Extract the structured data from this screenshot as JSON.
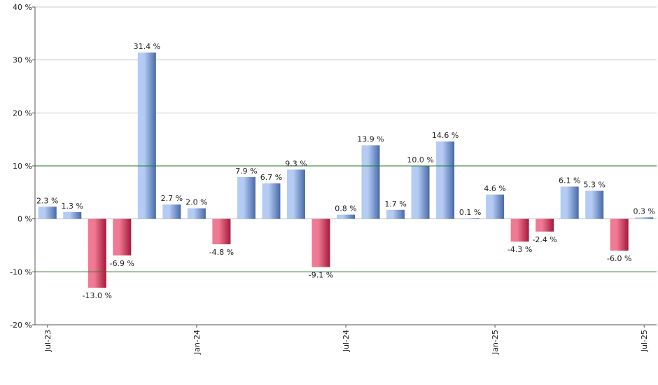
{
  "chart_data": {
    "type": "bar",
    "ylim": [
      -20,
      40
    ],
    "yticks": [
      -20,
      -10,
      0,
      10,
      20,
      30,
      40
    ],
    "ytick_suffix": " %",
    "categories": [
      "2023-07",
      "2023-08",
      "2023-09",
      "2023-10",
      "2023-11",
      "2023-12",
      "2024-01",
      "2024-02",
      "2024-03",
      "2024-04",
      "2024-05",
      "2024-06",
      "2024-07",
      "2024-08",
      "2024-09",
      "2024-10",
      "2024-11",
      "2024-12",
      "2025-01",
      "2025-02",
      "2025-03",
      "2025-04",
      "2025-05",
      "2025-06",
      "2025-07"
    ],
    "values": [
      2.3,
      1.3,
      -13.0,
      -6.9,
      31.4,
      2.7,
      2.0,
      -4.8,
      7.9,
      6.7,
      9.3,
      -9.1,
      0.8,
      13.9,
      1.7,
      10.0,
      14.6,
      0.1,
      4.6,
      -4.3,
      -2.4,
      6.1,
      5.3,
      -6.0,
      0.3
    ],
    "data_labels": [
      "2.3 %",
      "1.3 %",
      "-13.0 %",
      "-6.9 %",
      "31.4 %",
      "2.7 %",
      "2.0 %",
      "-4.8 %",
      "7.9 %",
      "6.7 %",
      "9.3 %",
      "-9.1 %",
      "0.8 %",
      "13.9 %",
      "1.7 %",
      "10.0 %",
      "14.6 %",
      "0.1 %",
      "4.6 %",
      "-4.3 %",
      "-2.4 %",
      "6.1 %",
      "5.3 %",
      "-6.0 %",
      "0.3 %"
    ],
    "xtick_labels": [
      {
        "index": 0,
        "label": "Jul-23"
      },
      {
        "index": 6,
        "label": "Jan-24"
      },
      {
        "index": 12,
        "label": "Jul-24"
      },
      {
        "index": 18,
        "label": "Jan-25"
      },
      {
        "index": 24,
        "label": "Jul-25"
      }
    ],
    "reference_lines": [
      10,
      -10
    ],
    "grid": true,
    "colors": {
      "positive_light": "#b4ccf4",
      "positive_dark": "#4869a8",
      "negative_light": "#f07a93",
      "negative_dark": "#a5183a",
      "reference_line": "#1f7a1f",
      "grid": "#c8c8c8",
      "axis": "#555555"
    }
  }
}
